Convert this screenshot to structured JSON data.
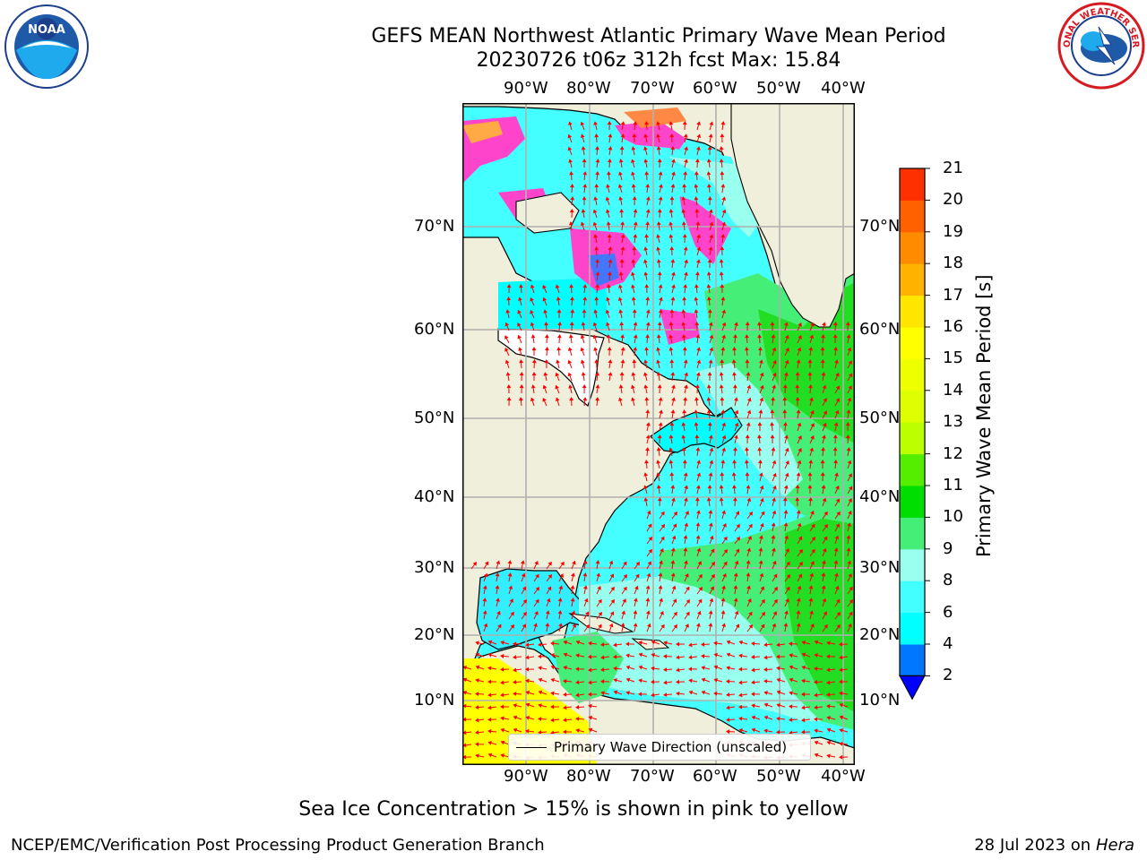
{
  "title_line1": "GEFS MEAN Northwest Atlantic Primary Wave Mean Period",
  "title_line2": "20230726 t06z 312h fcst   Max: 15.84",
  "lon_labels": [
    "90°W",
    "80°W",
    "70°W",
    "60°W",
    "50°W",
    "40°W"
  ],
  "lat_labels_left": [
    "70°N",
    "60°N",
    "50°N",
    "40°N",
    "30°N",
    "20°N",
    "10°N"
  ],
  "lat_labels_right": [
    "70°N",
    "60°N",
    "50°N",
    "40°N",
    "30°N",
    "20°N",
    "10°N"
  ],
  "legend_label": "Primary Wave Direction (unscaled)",
  "colorbar": {
    "title": "Primary Wave Mean Period [s]",
    "ticks": [
      "2",
      "4",
      "6",
      "8",
      "9",
      "10",
      "11",
      "12",
      "13",
      "14",
      "15",
      "16",
      "17",
      "18",
      "19",
      "20",
      "21"
    ],
    "colors": [
      "#0077ff",
      "#00ffff",
      "#44ffff",
      "#99ffee",
      "#44ee77",
      "#00dd00",
      "#55ee00",
      "#bbff00",
      "#ddff00",
      "#eeff00",
      "#ffff00",
      "#ffe600",
      "#ffb300",
      "#ff8c00",
      "#ff6000",
      "#ff3000",
      "#ff0000"
    ],
    "under_color": "#0000ff"
  },
  "note": "Sea Ice Concentration > 15% is shown in pink to yellow",
  "footer_left": "NCEP/EMC/Verification Post Processing Product Generation Branch",
  "footer_right_prefix": "28 Jul 2023 on ",
  "footer_right_host": "Hera",
  "logos": {
    "left": "NOAA",
    "right": "NATIONAL WEATHER SERVICE"
  },
  "colors": {
    "land": "#efefdc",
    "arrow": "#ff0000",
    "grid": "#b0b0b0"
  }
}
